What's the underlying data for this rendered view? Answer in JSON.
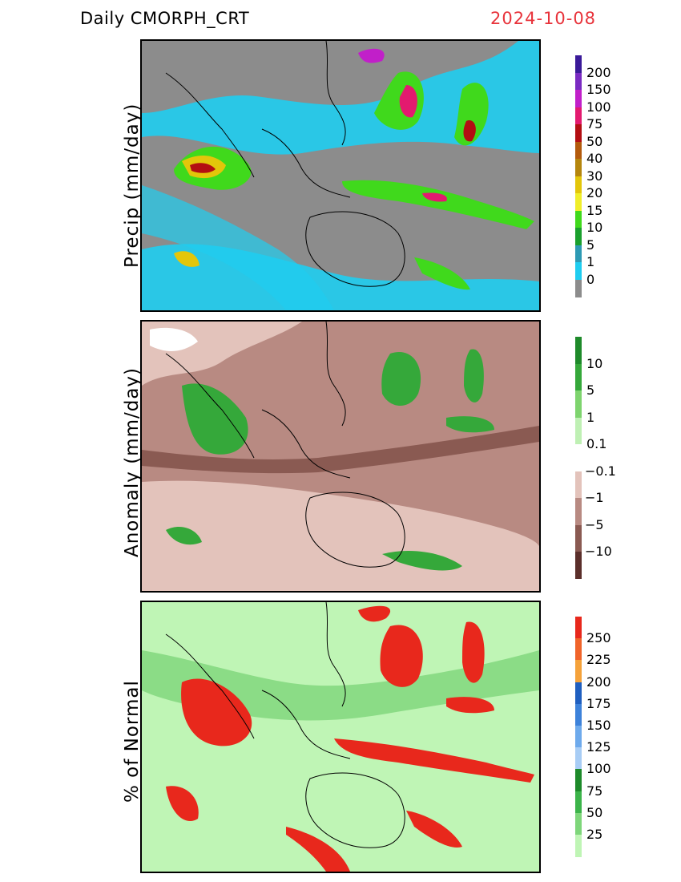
{
  "header": {
    "title": "Daily  CMORPH_CRT",
    "date": "2024-10-08"
  },
  "panels": [
    {
      "label": "Precip  (mm/day)",
      "legend": {
        "ticks": [
          "200",
          "150",
          "100",
          "75",
          "50",
          "40",
          "30",
          "20",
          "15",
          "10",
          "5",
          "1",
          "0"
        ],
        "colors": [
          "#3a1a99",
          "#7a2bc2",
          "#c11fc9",
          "#e31a6f",
          "#b30e12",
          "#b35a0c",
          "#b5860d",
          "#e3c60a",
          "#f0ee2a",
          "#40d91c",
          "#1aa02d",
          "#2d9ab4",
          "#1fcdf0",
          "#8c8c8c"
        ]
      }
    },
    {
      "label": "Anomaly  (mm/day)",
      "legend": {
        "ticks": [
          "10",
          "5",
          "1",
          "0.1",
          "−0.1",
          "−1",
          "−5",
          "−10"
        ],
        "colors": [
          "#1e8a2a",
          "#35a83a",
          "#7ed46e",
          "#bff0b4",
          "#ffffff",
          "#e3c3bb",
          "#b88a82",
          "#8a5a52",
          "#5b2f2b"
        ]
      }
    },
    {
      "label": "%  of  Normal",
      "legend": {
        "ticks": [
          "250",
          "225",
          "200",
          "175",
          "150",
          "125",
          "100",
          "75",
          "50",
          "25"
        ],
        "colors": [
          "#e8281c",
          "#f0642a",
          "#f5a23a",
          "#1f5fc0",
          "#3d82da",
          "#6eaaec",
          "#a8cdf5",
          "#1d8a2a",
          "#3cb44a",
          "#7ed67a",
          "#bff5b5"
        ]
      }
    }
  ]
}
